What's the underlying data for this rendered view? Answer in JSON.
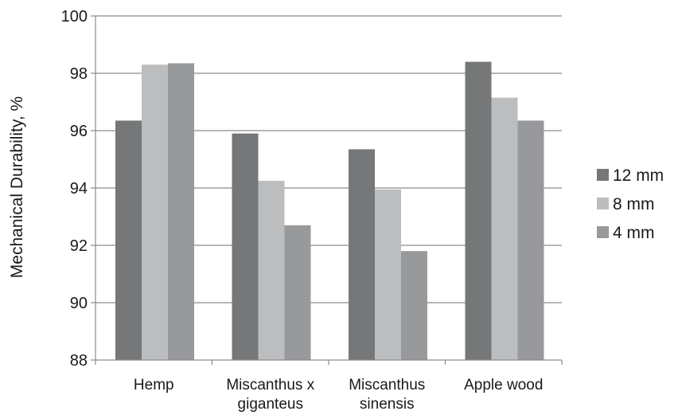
{
  "chart_data": {
    "type": "bar",
    "categories": [
      [
        "Hemp"
      ],
      [
        "Miscanthus x",
        "giganteus"
      ],
      [
        "Miscanthus",
        "sinensis"
      ],
      [
        "Apple wood"
      ]
    ],
    "series": [
      {
        "name": "12 mm",
        "color": "#767779",
        "values": [
          96.35,
          95.9,
          95.35,
          98.4
        ]
      },
      {
        "name": "8 mm",
        "color": "#bcbdbf",
        "values": [
          98.3,
          94.25,
          93.95,
          97.15
        ]
      },
      {
        "name": "4 mm",
        "color": "#98999b",
        "values": [
          98.35,
          92.7,
          91.8,
          96.35
        ]
      }
    ],
    "title": "",
    "xlabel": "",
    "ylabel": "Mechanical Durability, %",
    "ylim": [
      88,
      100
    ],
    "yticks": [
      88,
      90,
      92,
      94,
      96,
      98,
      100
    ],
    "grid": true,
    "legend": "right",
    "colors": {
      "gridline": "#8c8c8c",
      "axis": "#8c8c8c",
      "text": "#1a1a1a"
    }
  }
}
